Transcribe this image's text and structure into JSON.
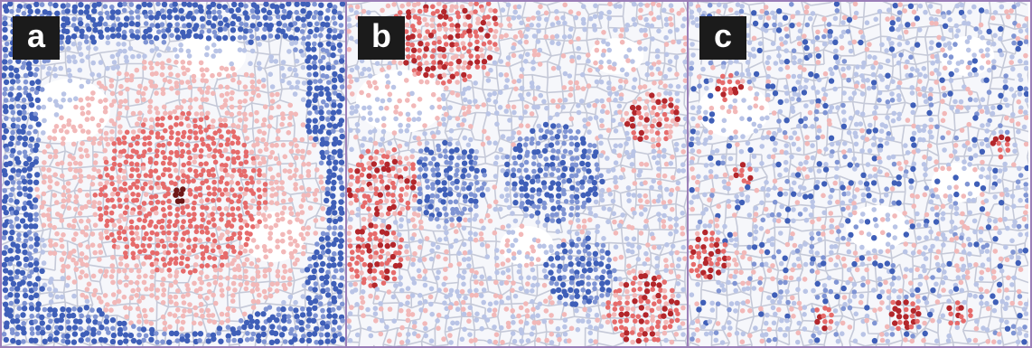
{
  "figure": {
    "panels": [
      {
        "id": "a",
        "label": "a"
      },
      {
        "id": "b",
        "label": "b"
      },
      {
        "id": "c",
        "label": "c"
      }
    ]
  },
  "colors": {
    "road": "#c5c9d8",
    "background": "#f6f7fb",
    "blue_light": "#b9c4e6",
    "blue_mid": "#7f94d3",
    "blue_dark": "#3f5fb8",
    "red_light": "#f2b8b8",
    "red_mid": "#e66b6b",
    "red_dark": "#b3262b",
    "red_darkest": "#6e1818",
    "border": "#9b7fb8"
  }
}
